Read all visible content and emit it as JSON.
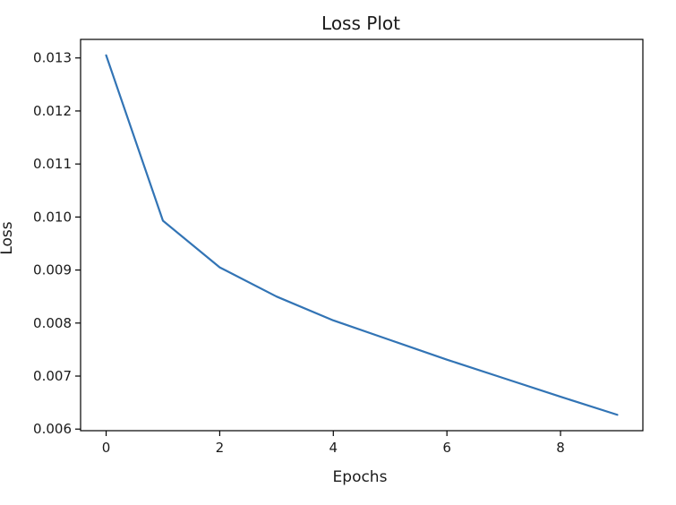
{
  "chart_data": {
    "type": "line",
    "title": "Loss Plot",
    "xlabel": "Epochs",
    "ylabel": "Loss",
    "xlim": [
      -0.45,
      9.45
    ],
    "ylim": [
      0.00597,
      0.01335
    ],
    "x_ticks": [
      0,
      2,
      4,
      6,
      8
    ],
    "x_tick_labels": [
      "0",
      "2",
      "4",
      "6",
      "8"
    ],
    "y_ticks": [
      0.006,
      0.007,
      0.008,
      0.009,
      0.01,
      0.011,
      0.012,
      0.013
    ],
    "y_tick_labels": [
      "0.006",
      "0.007",
      "0.008",
      "0.009",
      "0.010",
      "0.011",
      "0.012",
      "0.013"
    ],
    "grid": false,
    "series": [
      {
        "x": [
          0,
          1,
          2,
          3,
          4,
          5,
          6,
          7,
          8,
          9
        ],
        "values": [
          0.01305,
          0.00993,
          0.00905,
          0.0085,
          0.00805,
          0.00768,
          0.00731,
          0.00696,
          0.00661,
          0.00627
        ],
        "color": "#3274b5"
      }
    ]
  }
}
